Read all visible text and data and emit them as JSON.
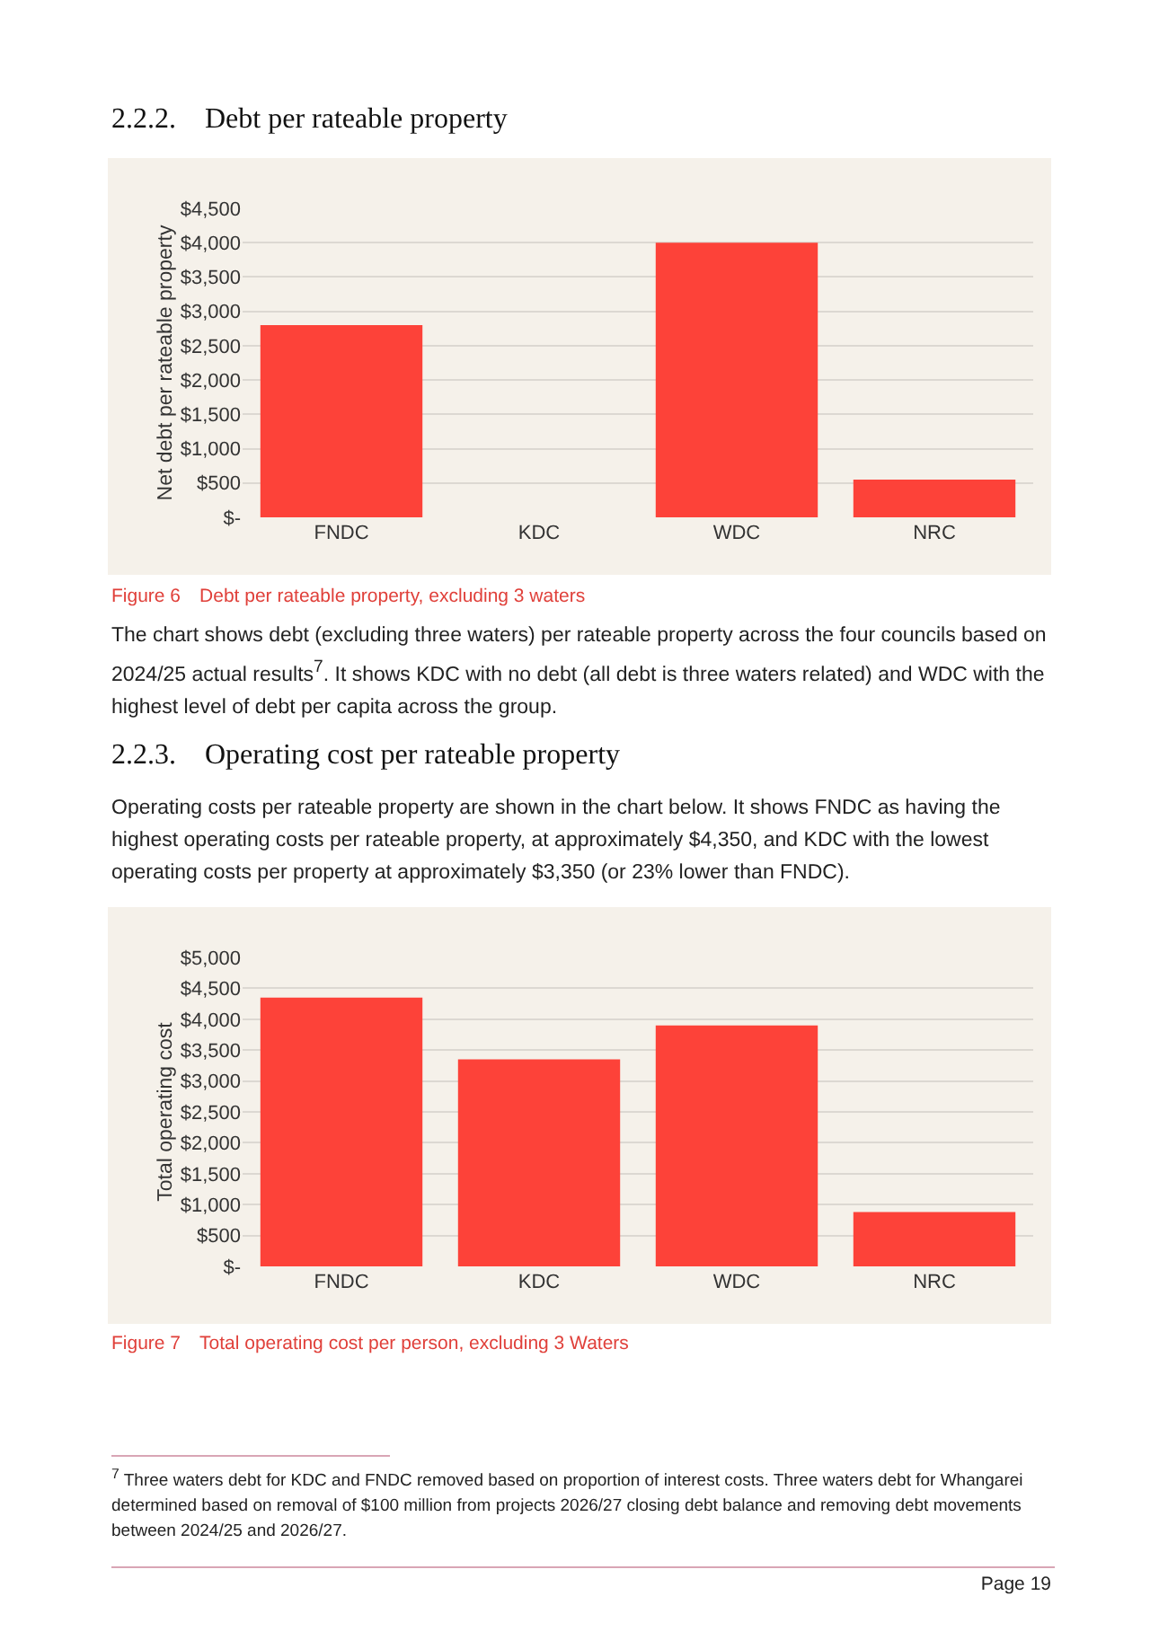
{
  "chart_data": [
    {
      "type": "bar",
      "title": "2.2.2. Debt per rateable property",
      "ylabel": "Net debt per rateable property",
      "categories": [
        "FNDC",
        "KDC",
        "WDC",
        "NRC"
      ],
      "values": [
        2800,
        0,
        4000,
        550
      ],
      "color": "#fd4239",
      "ylim": [
        0,
        4500
      ],
      "yticks": [
        {
          "value": 0,
          "label": "$-"
        },
        {
          "value": 500,
          "label": "$500"
        },
        {
          "value": 1000,
          "label": "$1,000"
        },
        {
          "value": 1500,
          "label": "$1,500"
        },
        {
          "value": 2000,
          "label": "$2,000"
        },
        {
          "value": 2500,
          "label": "$2,500"
        },
        {
          "value": 3000,
          "label": "$3,000"
        },
        {
          "value": 3500,
          "label": "$3,500"
        },
        {
          "value": 4000,
          "label": "$4,000"
        },
        {
          "value": 4500,
          "label": "$4,500"
        }
      ],
      "grid": "y",
      "annotations": [
        "Figure 6 Debt per rateable property, excluding 3 waters",
        "The chart shows debt (excluding three waters) per rateable property across the four councils based on 2024/25 actual results$^{7}$.  It shows KDC with no debt (all debt is three waters related) and WDC with the highest level of debt per capita across the group."
      ]
    },
    {
      "type": "bar",
      "title": "2.2.3. Operating cost per rateable property",
      "ylabel": "Total operating cost",
      "categories": [
        "FNDC",
        "KDC",
        "WDC",
        "NRC"
      ],
      "values": [
        4350,
        3350,
        3900,
        880
      ],
      "color": "#fd4239",
      "ylim": [
        0,
        5000
      ],
      "yticks": [
        {
          "value": 0,
          "label": "$-"
        },
        {
          "value": 500,
          "label": "$500"
        },
        {
          "value": 1000,
          "label": "$1,000"
        },
        {
          "value": 1500,
          "label": "$1,500"
        },
        {
          "value": 2000,
          "label": "$2,000"
        },
        {
          "value": 2500,
          "label": "$2,500"
        },
        {
          "value": 3000,
          "label": "$3,000"
        },
        {
          "value": 3500,
          "label": "$3,500"
        },
        {
          "value": 4000,
          "label": "$4,000"
        },
        {
          "value": 4500,
          "label": "$4,500"
        },
        {
          "value": 5000,
          "label": "$5,000"
        }
      ],
      "grid": "y",
      "annotations": [
        "Operating costs per rateable property are shown in the chart below. It shows FNDC as having the highest operating costs per rateable property, at approximately $4,350, and KDC with the lowest operating costs per property at approximately $3,350 (or 23% lower than FNDC).",
        "Figure 7 Total operating cost per person, excluding 3 Waters",
        "$^{7}$ Three waters debt for KDC  and FNDC removed based on proportion of interest costs.  Three waters debt for Whangarei determined based on removal of $100 million from projects 2026/27 closing debt balance and removing debt movements between 2024/25 and 2026/27.",
        "Page 19"
      ]
    }
  ]
}
